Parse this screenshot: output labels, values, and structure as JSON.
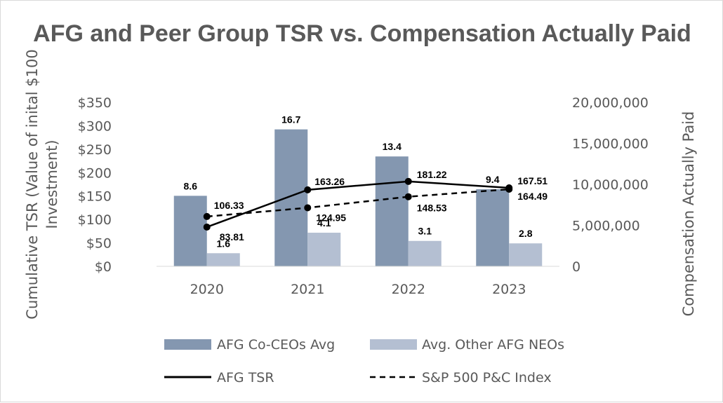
{
  "chart_data": {
    "type": "bar",
    "title": "AFG and Peer Group TSR vs. Compensation Actually Paid",
    "categories": [
      "2020",
      "2021",
      "2022",
      "2023"
    ],
    "y_left": {
      "label_line1": "Cumulative TSR (Value of inital $100",
      "label_line2": "Investment)",
      "range": [
        0,
        350
      ],
      "ticks": [
        0,
        50,
        100,
        150,
        200,
        250,
        300,
        350
      ],
      "tick_labels": [
        "$0",
        "$50",
        "$100",
        "$150",
        "$200",
        "$250",
        "$300",
        "$350"
      ]
    },
    "y_right": {
      "label": "Compensation Actually Paid",
      "range": [
        0,
        20000000
      ],
      "ticks": [
        0,
        5000000,
        10000000,
        15000000,
        20000000
      ],
      "tick_labels": [
        "0",
        "5,000,000",
        "10,000,000",
        "15,000,000",
        "20,000,000"
      ]
    },
    "bar_series": [
      {
        "name": "AFG Co-CEOs Avg",
        "axis": "right",
        "color": "#8497b0",
        "values": [
          8600000,
          16700000,
          13400000,
          9400000
        ],
        "labels": [
          "8.6",
          "16.7",
          "13.4",
          "9.4"
        ]
      },
      {
        "name": "Avg. Other AFG NEOs",
        "axis": "right",
        "color": "#b4bfd2",
        "values": [
          1600000,
          4100000,
          3100000,
          2800000
        ],
        "labels": [
          "1.6",
          "4.1",
          "3.1",
          "2.8"
        ]
      }
    ],
    "line_series": [
      {
        "name": "AFG TSR",
        "axis": "left",
        "style": "solid",
        "color": "#000000",
        "values": [
          83.81,
          163.26,
          181.22,
          167.51
        ],
        "labels": [
          "83.81",
          "163.26",
          "181.22",
          "167.51"
        ]
      },
      {
        "name": "S&P 500 P&C Index",
        "axis": "left",
        "style": "dashed",
        "color": "#000000",
        "values": [
          106.33,
          124.95,
          148.53,
          164.49
        ],
        "labels": [
          "106.33",
          "124.95",
          "148.53",
          "164.49"
        ]
      }
    ],
    "legend_position": "bottom",
    "grid": false
  }
}
